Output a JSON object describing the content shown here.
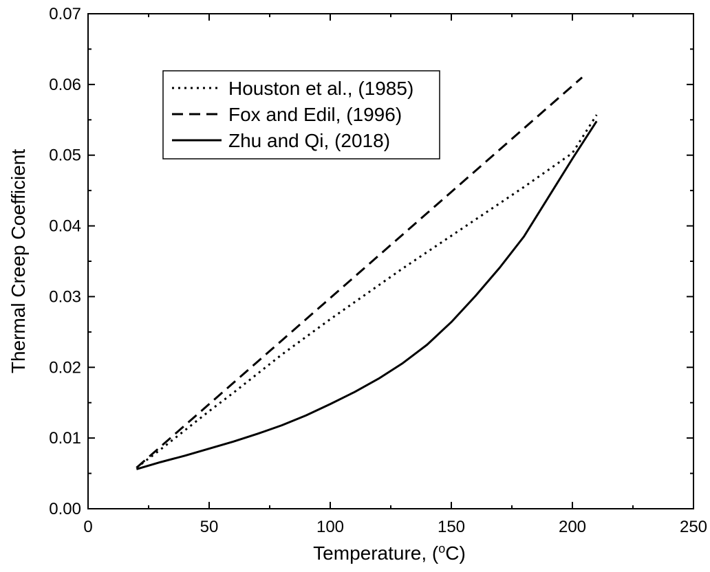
{
  "chart_data": {
    "type": "line",
    "xlabel": "Temperature, (",
    "xlabel_degree": "o",
    "xlabel_unit": "C)",
    "ylabel": "Thermal Creep Coefficient",
    "xlim": [
      0,
      250
    ],
    "ylim": [
      0,
      0.07
    ],
    "xticks": [
      "0",
      "50",
      "100",
      "150",
      "200",
      "250"
    ],
    "yticks": [
      "0.00",
      "0.01",
      "0.02",
      "0.03",
      "0.04",
      "0.05",
      "0.06",
      "0.07"
    ],
    "grid": false,
    "legend_position": "top-left",
    "series": [
      {
        "name": "Houston et al., (1985)",
        "style": "dotted",
        "color": "#000000",
        "x": [
          20,
          30,
          40,
          50,
          60,
          70,
          80,
          90,
          100,
          110,
          120,
          130,
          140,
          150,
          160,
          170,
          180,
          190,
          200,
          210
        ],
        "y": [
          0.0058,
          0.0084,
          0.0111,
          0.0138,
          0.0164,
          0.0191,
          0.0218,
          0.0243,
          0.0268,
          0.0292,
          0.0316,
          0.034,
          0.0363,
          0.0386,
          0.0409,
          0.0432,
          0.0455,
          0.0479,
          0.0503,
          0.0557
        ]
      },
      {
        "name": "Fox and Edil, (1996)",
        "style": "dashed",
        "color": "#000000",
        "x": [
          20,
          40,
          60,
          80,
          100,
          120,
          140,
          160,
          180,
          204
        ],
        "y": [
          0.0058,
          0.0118,
          0.0178,
          0.0238,
          0.0298,
          0.0358,
          0.0418,
          0.0478,
          0.0538,
          0.061
        ]
      },
      {
        "name": "Zhu and Qi, (2018)",
        "style": "solid",
        "color": "#000000",
        "x": [
          20,
          30,
          40,
          50,
          60,
          70,
          80,
          90,
          100,
          110,
          120,
          130,
          140,
          150,
          160,
          170,
          180,
          190,
          200,
          210
        ],
        "y": [
          0.0056,
          0.0066,
          0.0075,
          0.0085,
          0.0095,
          0.0106,
          0.0118,
          0.0132,
          0.0148,
          0.0165,
          0.0184,
          0.0206,
          0.0232,
          0.0264,
          0.0301,
          0.0341,
          0.0385,
          0.044,
          0.0495,
          0.0548
        ]
      }
    ]
  }
}
